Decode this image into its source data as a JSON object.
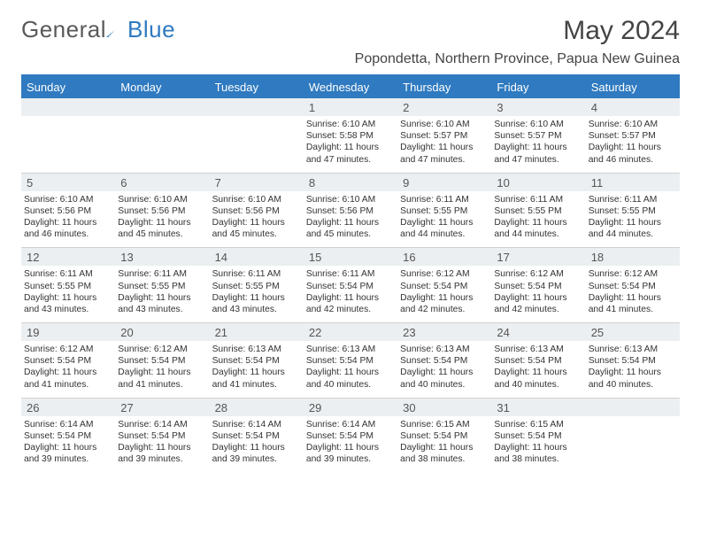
{
  "brand": {
    "part1": "General",
    "part2": "Blue"
  },
  "title": "May 2024",
  "location": "Popondetta, Northern Province, Papua New Guinea",
  "colors": {
    "accent": "#2f7ac0",
    "header_text": "#ffffff",
    "daynum_bg": "#eceff1",
    "body_text": "#333333",
    "grid_line": "#d0d0d0",
    "background": "#ffffff"
  },
  "layout": {
    "columns": 7,
    "type": "calendar-month",
    "cell_font_size_pt": 8,
    "header_font_size_pt": 10,
    "title_font_size_pt": 22
  },
  "day_names": [
    "Sunday",
    "Monday",
    "Tuesday",
    "Wednesday",
    "Thursday",
    "Friday",
    "Saturday"
  ],
  "weeks": [
    [
      null,
      null,
      null,
      {
        "d": "1",
        "rise": "6:10 AM",
        "set": "5:58 PM",
        "day": "11 hours and 47 minutes."
      },
      {
        "d": "2",
        "rise": "6:10 AM",
        "set": "5:57 PM",
        "day": "11 hours and 47 minutes."
      },
      {
        "d": "3",
        "rise": "6:10 AM",
        "set": "5:57 PM",
        "day": "11 hours and 47 minutes."
      },
      {
        "d": "4",
        "rise": "6:10 AM",
        "set": "5:57 PM",
        "day": "11 hours and 46 minutes."
      }
    ],
    [
      {
        "d": "5",
        "rise": "6:10 AM",
        "set": "5:56 PM",
        "day": "11 hours and 46 minutes."
      },
      {
        "d": "6",
        "rise": "6:10 AM",
        "set": "5:56 PM",
        "day": "11 hours and 45 minutes."
      },
      {
        "d": "7",
        "rise": "6:10 AM",
        "set": "5:56 PM",
        "day": "11 hours and 45 minutes."
      },
      {
        "d": "8",
        "rise": "6:10 AM",
        "set": "5:56 PM",
        "day": "11 hours and 45 minutes."
      },
      {
        "d": "9",
        "rise": "6:11 AM",
        "set": "5:55 PM",
        "day": "11 hours and 44 minutes."
      },
      {
        "d": "10",
        "rise": "6:11 AM",
        "set": "5:55 PM",
        "day": "11 hours and 44 minutes."
      },
      {
        "d": "11",
        "rise": "6:11 AM",
        "set": "5:55 PM",
        "day": "11 hours and 44 minutes."
      }
    ],
    [
      {
        "d": "12",
        "rise": "6:11 AM",
        "set": "5:55 PM",
        "day": "11 hours and 43 minutes."
      },
      {
        "d": "13",
        "rise": "6:11 AM",
        "set": "5:55 PM",
        "day": "11 hours and 43 minutes."
      },
      {
        "d": "14",
        "rise": "6:11 AM",
        "set": "5:55 PM",
        "day": "11 hours and 43 minutes."
      },
      {
        "d": "15",
        "rise": "6:11 AM",
        "set": "5:54 PM",
        "day": "11 hours and 42 minutes."
      },
      {
        "d": "16",
        "rise": "6:12 AM",
        "set": "5:54 PM",
        "day": "11 hours and 42 minutes."
      },
      {
        "d": "17",
        "rise": "6:12 AM",
        "set": "5:54 PM",
        "day": "11 hours and 42 minutes."
      },
      {
        "d": "18",
        "rise": "6:12 AM",
        "set": "5:54 PM",
        "day": "11 hours and 41 minutes."
      }
    ],
    [
      {
        "d": "19",
        "rise": "6:12 AM",
        "set": "5:54 PM",
        "day": "11 hours and 41 minutes."
      },
      {
        "d": "20",
        "rise": "6:12 AM",
        "set": "5:54 PM",
        "day": "11 hours and 41 minutes."
      },
      {
        "d": "21",
        "rise": "6:13 AM",
        "set": "5:54 PM",
        "day": "11 hours and 41 minutes."
      },
      {
        "d": "22",
        "rise": "6:13 AM",
        "set": "5:54 PM",
        "day": "11 hours and 40 minutes."
      },
      {
        "d": "23",
        "rise": "6:13 AM",
        "set": "5:54 PM",
        "day": "11 hours and 40 minutes."
      },
      {
        "d": "24",
        "rise": "6:13 AM",
        "set": "5:54 PM",
        "day": "11 hours and 40 minutes."
      },
      {
        "d": "25",
        "rise": "6:13 AM",
        "set": "5:54 PM",
        "day": "11 hours and 40 minutes."
      }
    ],
    [
      {
        "d": "26",
        "rise": "6:14 AM",
        "set": "5:54 PM",
        "day": "11 hours and 39 minutes."
      },
      {
        "d": "27",
        "rise": "6:14 AM",
        "set": "5:54 PM",
        "day": "11 hours and 39 minutes."
      },
      {
        "d": "28",
        "rise": "6:14 AM",
        "set": "5:54 PM",
        "day": "11 hours and 39 minutes."
      },
      {
        "d": "29",
        "rise": "6:14 AM",
        "set": "5:54 PM",
        "day": "11 hours and 39 minutes."
      },
      {
        "d": "30",
        "rise": "6:15 AM",
        "set": "5:54 PM",
        "day": "11 hours and 38 minutes."
      },
      {
        "d": "31",
        "rise": "6:15 AM",
        "set": "5:54 PM",
        "day": "11 hours and 38 minutes."
      },
      null
    ]
  ],
  "labels": {
    "sunrise": "Sunrise:",
    "sunset": "Sunset:",
    "daylight": "Daylight:"
  }
}
